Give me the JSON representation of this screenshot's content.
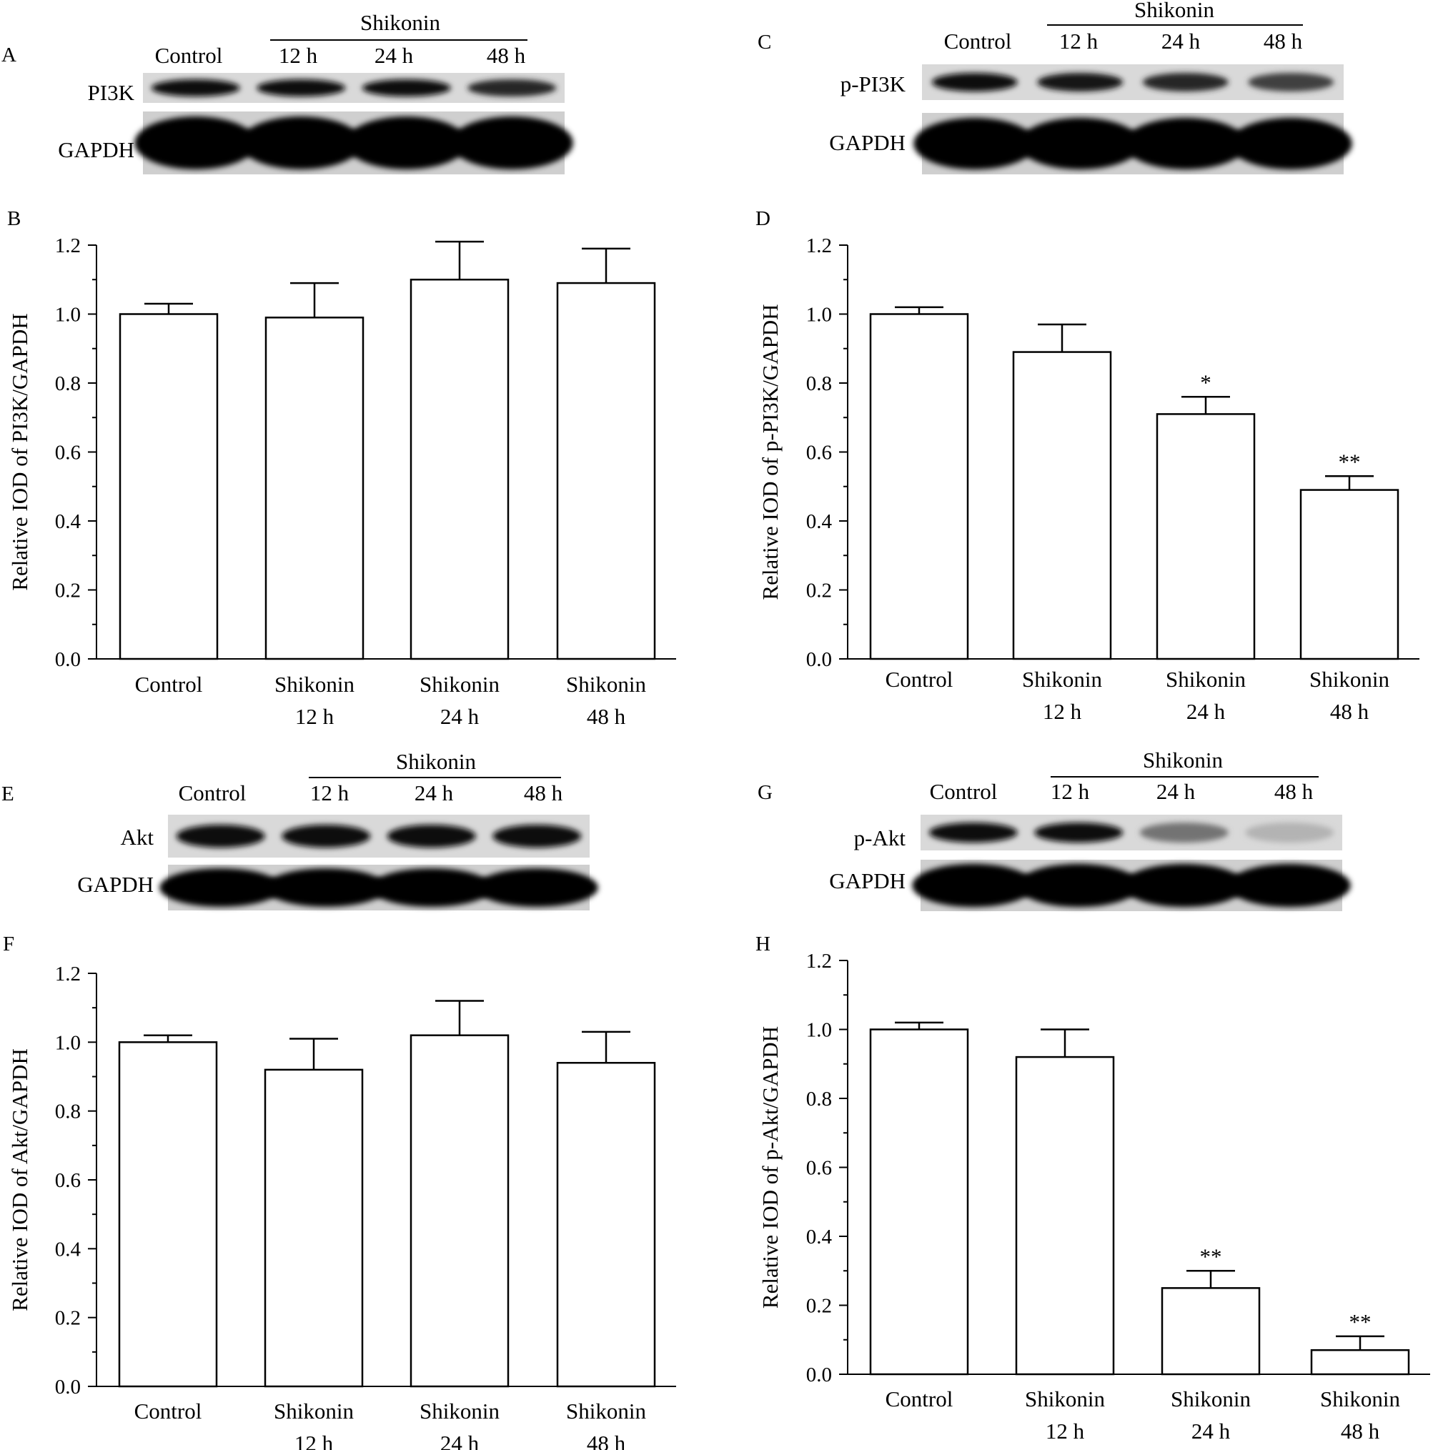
{
  "figure": {
    "blots": [
      {
        "letter": "A",
        "protein": "PI3K",
        "loading": "GAPDH",
        "group_label": "Shikonin",
        "lanes": [
          "Control",
          "12 h",
          "24 h",
          "48 h"
        ],
        "band_intensity": [
          0.95,
          0.95,
          0.95,
          0.85
        ],
        "loading_intensity": [
          1,
          1,
          1,
          1
        ]
      },
      {
        "letter": "C",
        "protein": "p-PI3K",
        "loading": "GAPDH",
        "group_label": "Shikonin",
        "lanes": [
          "Control",
          "12 h",
          "24 h",
          "48 h"
        ],
        "band_intensity": [
          0.95,
          0.9,
          0.85,
          0.75
        ],
        "loading_intensity": [
          1,
          1,
          1,
          1
        ]
      },
      {
        "letter": "E",
        "protein": "Akt",
        "loading": "GAPDH",
        "group_label": "Shikonin",
        "lanes": [
          "Control",
          "12 h",
          "24 h",
          "48 h"
        ],
        "band_intensity": [
          0.95,
          0.95,
          0.95,
          0.95
        ],
        "loading_intensity": [
          1,
          1,
          1,
          1
        ]
      },
      {
        "letter": "G",
        "protein": "p-Akt",
        "loading": "GAPDH",
        "group_label": "Shikonin",
        "lanes": [
          "Control",
          "12 h",
          "24 h",
          "48 h"
        ],
        "band_intensity": [
          0.95,
          0.95,
          0.55,
          0.3
        ],
        "loading_intensity": [
          1,
          1,
          1,
          1
        ]
      }
    ]
  },
  "chart_data": [
    {
      "letter": "B",
      "type": "bar",
      "title": "",
      "ylabel": "Relative IOD of PI3K/GAPDH",
      "categories": [
        [
          "Control"
        ],
        [
          "Shikonin",
          "12 h"
        ],
        [
          "Shikonin",
          "24 h"
        ],
        [
          "Shikonin",
          "48 h"
        ]
      ],
      "values": [
        1.0,
        0.99,
        1.1,
        1.09
      ],
      "errors": [
        0.03,
        0.1,
        0.11,
        0.1
      ],
      "annotations": [
        "",
        "",
        "",
        ""
      ],
      "ylim": [
        0.0,
        1.2
      ],
      "yticks": [
        "0.0",
        "0.2",
        "0.4",
        "0.6",
        "0.8",
        "1.0",
        "1.2"
      ]
    },
    {
      "letter": "D",
      "type": "bar",
      "title": "",
      "ylabel": "Relative IOD of p-PI3K/GAPDH",
      "categories": [
        [
          "Control"
        ],
        [
          "Shikonin",
          "12 h"
        ],
        [
          "Shikonin",
          "24 h"
        ],
        [
          "Shikonin",
          "48 h"
        ]
      ],
      "values": [
        1.0,
        0.89,
        0.71,
        0.49
      ],
      "errors": [
        0.02,
        0.08,
        0.05,
        0.04
      ],
      "annotations": [
        "",
        "",
        "*",
        "**"
      ],
      "ylim": [
        0.0,
        1.2
      ],
      "yticks": [
        "0.0",
        "0.2",
        "0.4",
        "0.6",
        "0.8",
        "1.0",
        "1.2"
      ]
    },
    {
      "letter": "F",
      "type": "bar",
      "title": "",
      "ylabel": "Relative IOD of Akt/GAPDH",
      "categories": [
        [
          "Control"
        ],
        [
          "Shikonin",
          "12 h"
        ],
        [
          "Shikonin",
          "24 h"
        ],
        [
          "Shikonin",
          "48 h"
        ]
      ],
      "values": [
        1.0,
        0.92,
        1.02,
        0.94
      ],
      "errors": [
        0.02,
        0.09,
        0.1,
        0.09
      ],
      "annotations": [
        "",
        "",
        "",
        ""
      ],
      "ylim": [
        0.0,
        1.2
      ],
      "yticks": [
        "0.0",
        "0.2",
        "0.4",
        "0.6",
        "0.8",
        "1.0",
        "1.2"
      ]
    },
    {
      "letter": "H",
      "type": "bar",
      "title": "",
      "ylabel": "Relative IOD of p-Akt/GAPDH",
      "categories": [
        [
          "Control"
        ],
        [
          "Shikonin",
          "12 h"
        ],
        [
          "Shikonin",
          "24 h"
        ],
        [
          "Shikonin",
          "48 h"
        ]
      ],
      "values": [
        1.0,
        0.92,
        0.25,
        0.07
      ],
      "errors": [
        0.02,
        0.08,
        0.05,
        0.04
      ],
      "annotations": [
        "",
        "",
        "**",
        "**"
      ],
      "ylim": [
        0.0,
        1.2
      ],
      "yticks": [
        "0.0",
        "0.2",
        "0.4",
        "0.6",
        "0.8",
        "1.0",
        "1.2"
      ]
    }
  ]
}
